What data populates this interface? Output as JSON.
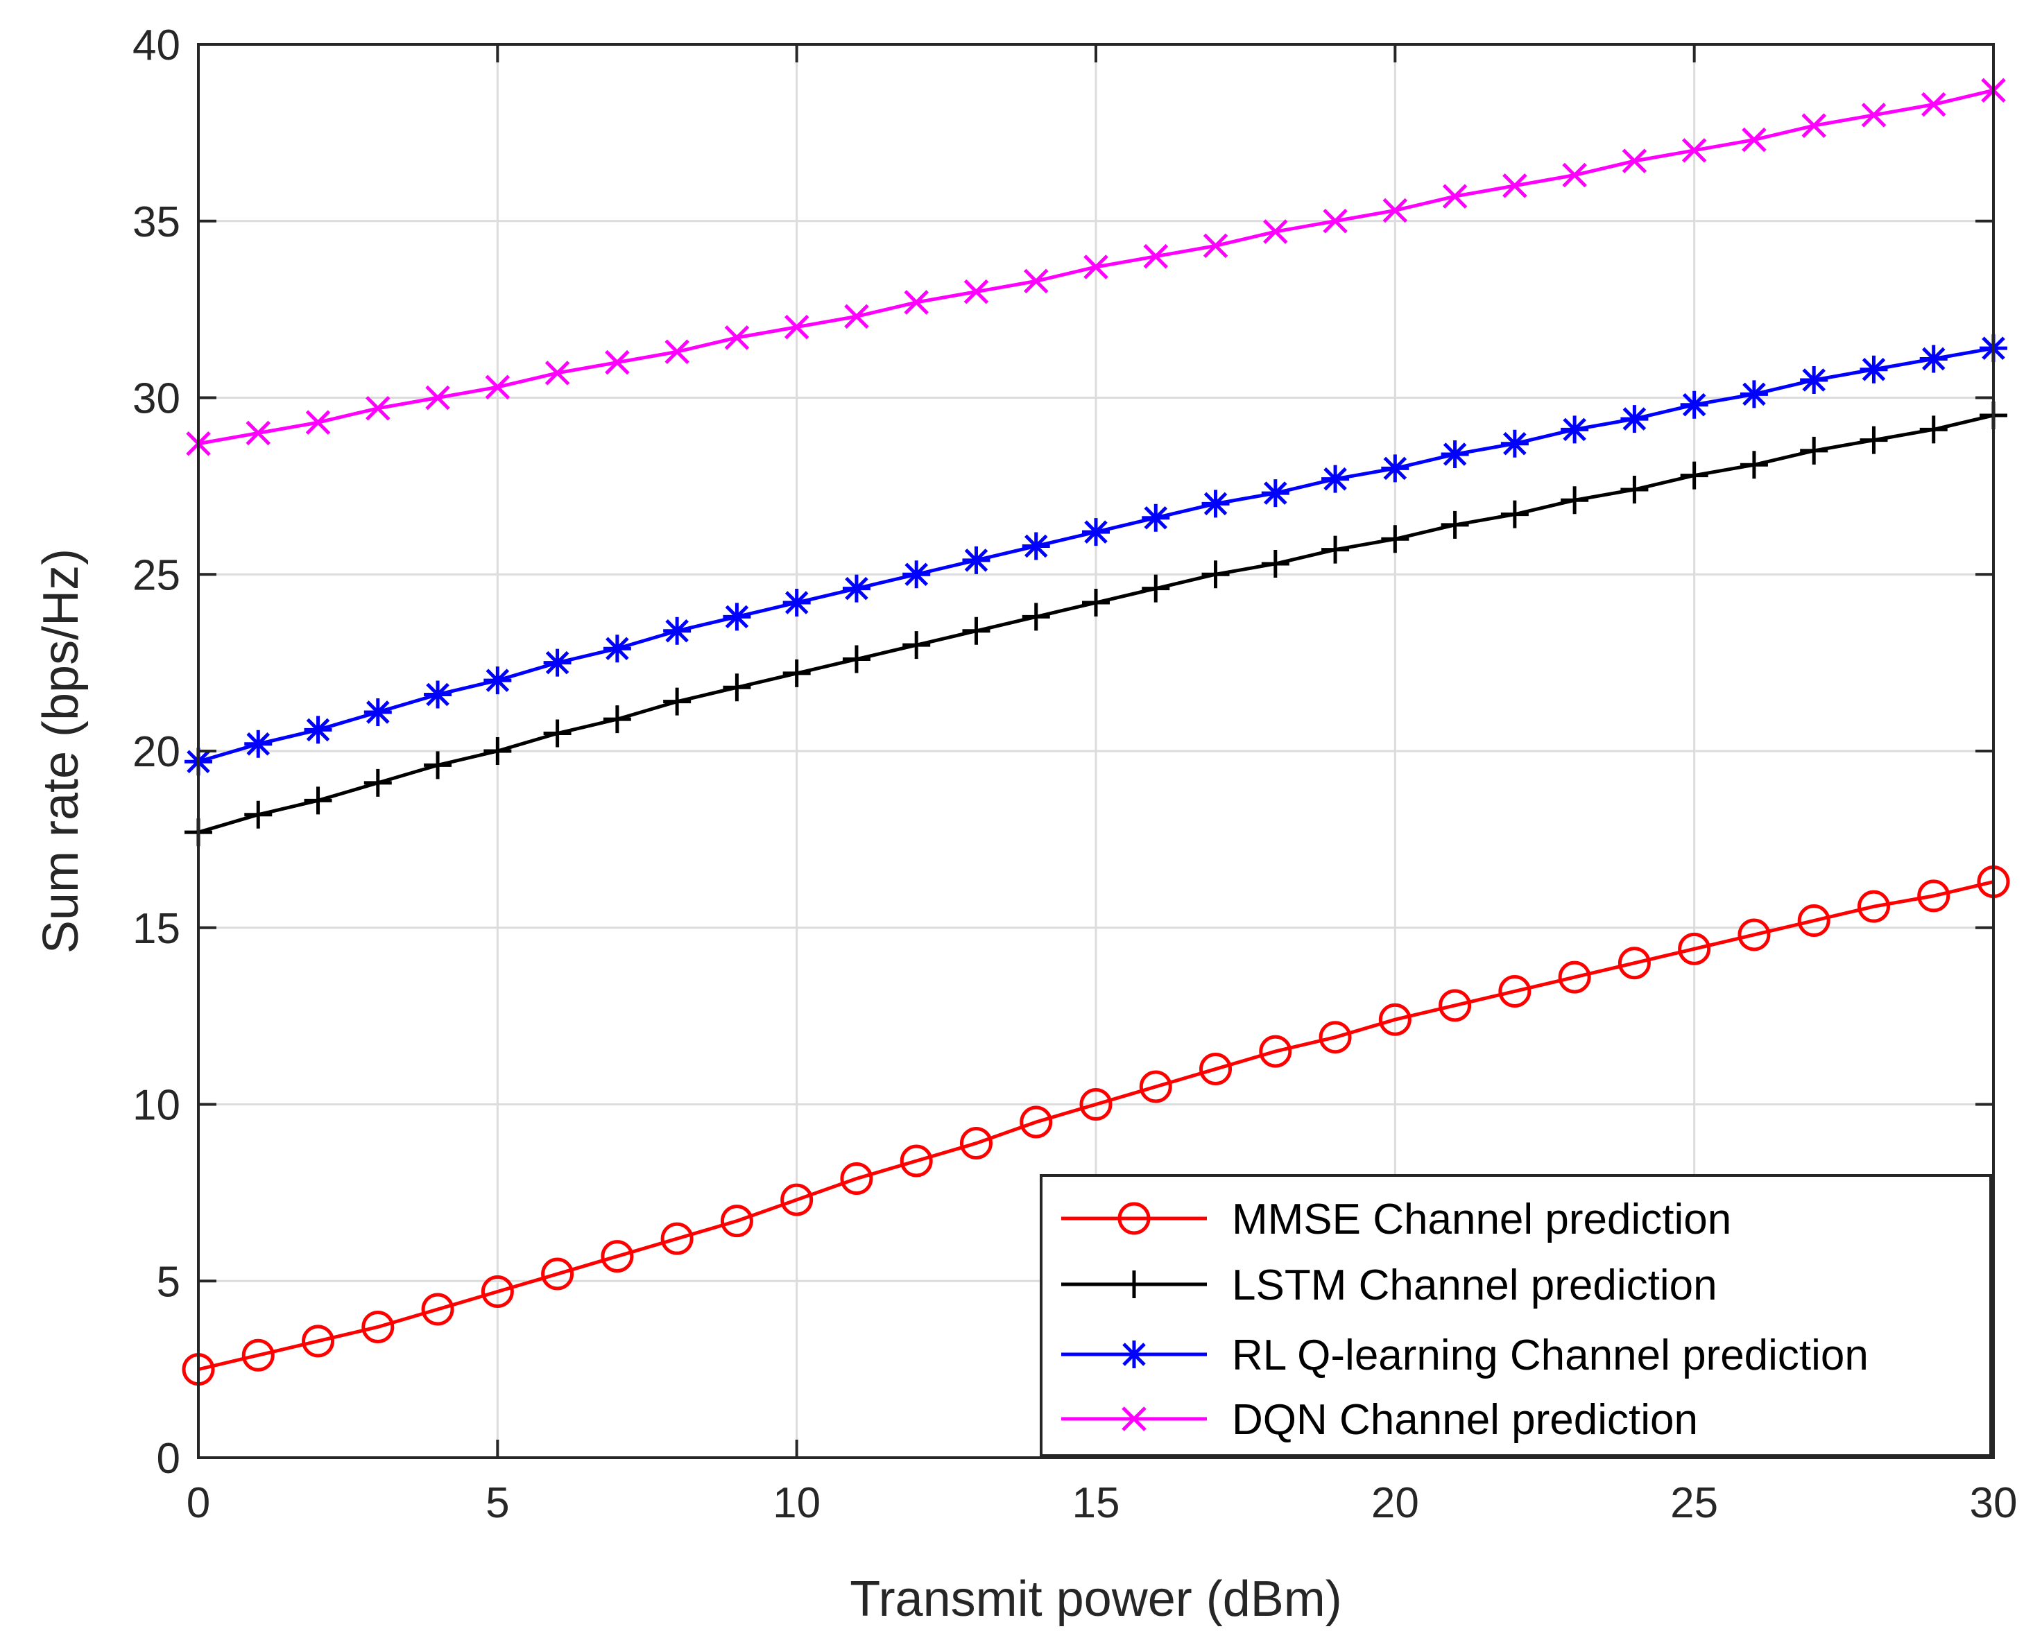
{
  "chart_data": {
    "type": "line",
    "title": "",
    "xlabel": "Transmit power (dBm)",
    "ylabel": "Sum rate (bps/Hz)",
    "xlim": [
      0,
      30
    ],
    "ylim": [
      0,
      40
    ],
    "xticks": [
      0,
      5,
      10,
      15,
      20,
      25,
      30
    ],
    "yticks": [
      0,
      5,
      10,
      15,
      20,
      25,
      30,
      35,
      40
    ],
    "grid": true,
    "legend_position": "bottom-right",
    "x": [
      0,
      1,
      2,
      3,
      4,
      5,
      6,
      7,
      8,
      9,
      10,
      11,
      12,
      13,
      14,
      15,
      16,
      17,
      18,
      19,
      20,
      21,
      22,
      23,
      24,
      25,
      26,
      27,
      28,
      29,
      30
    ],
    "series": [
      {
        "name": "MMSE Channel prediction",
        "color": "#ff0000",
        "marker": "circle",
        "values": [
          2.5,
          2.9,
          3.3,
          3.7,
          4.2,
          4.7,
          5.2,
          5.7,
          6.2,
          6.7,
          7.3,
          7.9,
          8.4,
          8.9,
          9.5,
          10.0,
          10.5,
          11.0,
          11.5,
          11.9,
          12.4,
          12.8,
          13.2,
          13.6,
          14.0,
          14.4,
          14.8,
          15.2,
          15.6,
          15.9,
          16.3
        ]
      },
      {
        "name": "LSTM Channel prediction",
        "color": "#000000",
        "marker": "plus",
        "values": [
          17.7,
          18.2,
          18.6,
          19.1,
          19.6,
          20.0,
          20.5,
          20.9,
          21.4,
          21.8,
          22.2,
          22.6,
          23.0,
          23.4,
          23.8,
          24.2,
          24.6,
          25.0,
          25.3,
          25.7,
          26.0,
          26.4,
          26.7,
          27.1,
          27.4,
          27.8,
          28.1,
          28.5,
          28.8,
          29.1,
          29.5
        ]
      },
      {
        "name": "RL Q-learning Channel prediction",
        "color": "#0000ff",
        "marker": "asterisk",
        "values": [
          19.7,
          20.2,
          20.6,
          21.1,
          21.6,
          22.0,
          22.5,
          22.9,
          23.4,
          23.8,
          24.2,
          24.6,
          25.0,
          25.4,
          25.8,
          26.2,
          26.6,
          27.0,
          27.3,
          27.7,
          28.0,
          28.4,
          28.7,
          29.1,
          29.4,
          29.8,
          30.1,
          30.5,
          30.8,
          31.1,
          31.4
        ]
      },
      {
        "name": "DQN Channel prediction",
        "color": "#ff00ff",
        "marker": "cross",
        "values": [
          28.7,
          29.0,
          29.3,
          29.7,
          30.0,
          30.3,
          30.7,
          31.0,
          31.3,
          31.7,
          32.0,
          32.3,
          32.7,
          33.0,
          33.3,
          33.7,
          34.0,
          34.3,
          34.7,
          35.0,
          35.3,
          35.7,
          36.0,
          36.3,
          36.7,
          37.0,
          37.3,
          37.7,
          38.0,
          38.3,
          38.7
        ]
      }
    ]
  }
}
